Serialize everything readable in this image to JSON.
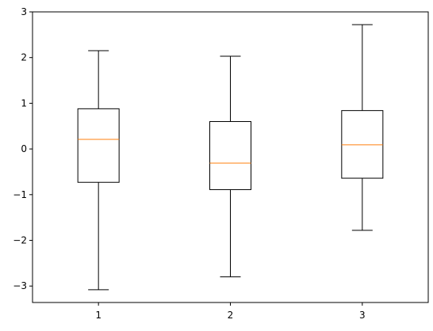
{
  "chart_data": {
    "type": "boxplot",
    "title": "",
    "xlabel": "",
    "ylabel": "",
    "categories": [
      "1",
      "2",
      "3"
    ],
    "boxes": [
      {
        "label": "1",
        "whisker_low": -3.08,
        "q1": -0.73,
        "median": 0.21,
        "q3": 0.88,
        "whisker_high": 2.15
      },
      {
        "label": "2",
        "whisker_low": -2.8,
        "q1": -0.89,
        "median": -0.31,
        "q3": 0.6,
        "whisker_high": 2.03
      },
      {
        "label": "3",
        "whisker_low": -1.78,
        "q1": -0.64,
        "median": 0.09,
        "q3": 0.84,
        "whisker_high": 2.72
      }
    ],
    "ylim": [
      -3.36,
      3.0
    ],
    "yticks": [
      "−3",
      "−2",
      "−1",
      "0",
      "1",
      "2",
      "3"
    ],
    "ytick_values": [
      -3,
      -2,
      -1,
      0,
      1,
      2,
      3
    ],
    "xlim": [
      0.5,
      3.5
    ],
    "grid": false,
    "colors": {
      "box": "#000000",
      "median": "#ff7f0e",
      "background": "#ffffff"
    }
  }
}
